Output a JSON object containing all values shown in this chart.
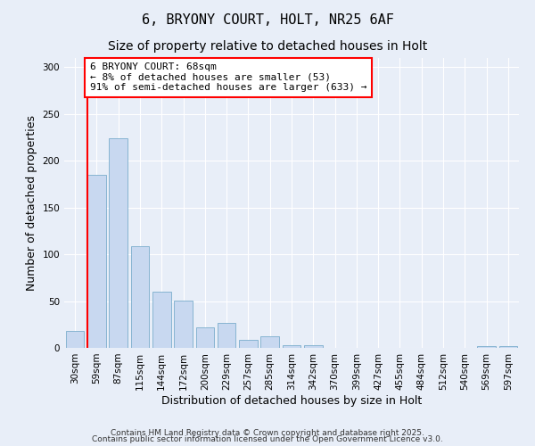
{
  "title1": "6, BRYONY COURT, HOLT, NR25 6AF",
  "title2": "Size of property relative to detached houses in Holt",
  "xlabel": "Distribution of detached houses by size in Holt",
  "ylabel": "Number of detached properties",
  "categories": [
    "30sqm",
    "59sqm",
    "87sqm",
    "115sqm",
    "144sqm",
    "172sqm",
    "200sqm",
    "229sqm",
    "257sqm",
    "285sqm",
    "314sqm",
    "342sqm",
    "370sqm",
    "399sqm",
    "427sqm",
    "455sqm",
    "484sqm",
    "512sqm",
    "540sqm",
    "569sqm",
    "597sqm"
  ],
  "values": [
    18,
    185,
    224,
    109,
    60,
    51,
    22,
    27,
    9,
    12,
    3,
    3,
    0,
    0,
    0,
    0,
    0,
    0,
    0,
    2,
    2
  ],
  "bar_color": "#c8d8f0",
  "bar_edge_color": "#7aadcc",
  "vline_x": 0.55,
  "vline_color": "red",
  "annotation_text": "6 BRYONY COURT: 68sqm\n← 8% of detached houses are smaller (53)\n91% of semi-detached houses are larger (633) →",
  "annotation_box_color": "white",
  "annotation_box_edge_color": "red",
  "ylim": [
    0,
    310
  ],
  "yticks": [
    0,
    50,
    100,
    150,
    200,
    250,
    300
  ],
  "bg_color": "#e8eef8",
  "footer1": "Contains HM Land Registry data © Crown copyright and database right 2025.",
  "footer2": "Contains public sector information licensed under the Open Government Licence v3.0.",
  "title_fontsize": 11,
  "subtitle_fontsize": 10,
  "axis_label_fontsize": 9,
  "tick_fontsize": 7.5,
  "annotation_fontsize": 8,
  "footer_fontsize": 6.5
}
